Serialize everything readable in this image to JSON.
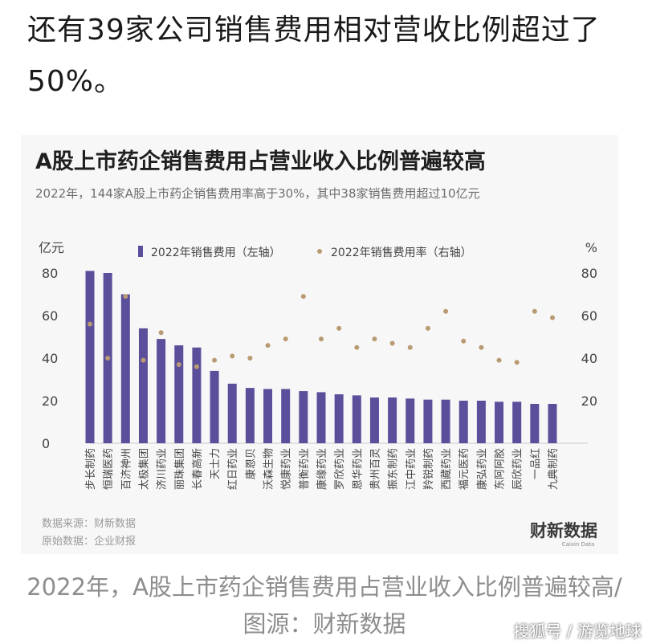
{
  "article": {
    "headline": "还有39家公司销售费用相对营收比例超过了50%。",
    "caption": "2022年，A股上市药企销售费用占营业收入比例普遍较高/图源：财新数据",
    "watermark": "搜狐号 / 游览地球"
  },
  "chart_data": {
    "type": "bar",
    "title": "A股上市药企销售费用占营业收入比例普遍较高",
    "subtitle": "2022年，144家A股上市药企销售费用率高于30%，其中38家销售费用超过10亿元",
    "ylabel_left": "亿元",
    "ylabel_right": "%",
    "ylim": [
      0,
      80
    ],
    "yticks": [
      0,
      20,
      40,
      60,
      80
    ],
    "yticks_right": [
      20,
      40,
      60,
      80
    ],
    "grid": false,
    "legend_position": "top",
    "categories": [
      "步长制药",
      "恒瑞医药",
      "百济神州",
      "太极集团",
      "济川药业",
      "丽珠集团",
      "长春高新",
      "天士力",
      "红日药业",
      "康恩贝",
      "沃森生物",
      "悦康药业",
      "普衡药业",
      "康缘药业",
      "罗欣药业",
      "恩华药业",
      "贵州百灵",
      "振东制药",
      "江中药业",
      "羚锐制药",
      "西藏药业",
      "福元医药",
      "康弘药业",
      "东阿阿胶",
      "辰欣药业",
      "一品红",
      "九典制药"
    ],
    "series": [
      {
        "name": "2022年销售费用（左轴）",
        "axis": "left",
        "kind": "bar",
        "color": "#5b4f9c",
        "values": [
          81,
          80,
          70,
          54,
          49,
          46,
          45,
          34,
          28,
          26,
          25.5,
          25.5,
          24.5,
          24,
          23,
          22.5,
          21.5,
          21.5,
          21,
          20.5,
          20.5,
          20,
          20,
          19.5,
          19.5,
          18.5,
          18.5
        ]
      },
      {
        "name": "2022年销售费用率（右轴）",
        "axis": "right",
        "kind": "dot",
        "color": "#b99b73",
        "values": [
          56,
          40,
          69,
          39,
          52,
          37,
          36,
          39,
          41,
          40,
          46,
          49,
          69,
          49,
          54,
          45,
          49,
          47,
          45,
          54,
          62,
          48,
          45,
          39,
          38,
          62,
          59
        ]
      }
    ],
    "footnotes": [
      "数据来源：财新数据",
      "原始数据：企业财报"
    ],
    "brand": "财新数据",
    "brand_sub": "Caixin Data"
  }
}
